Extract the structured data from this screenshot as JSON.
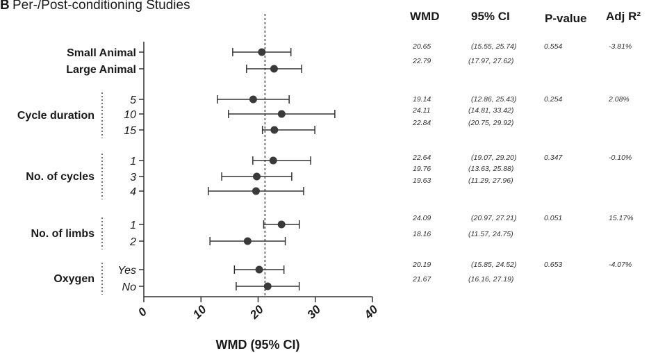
{
  "panel": {
    "letter": "B",
    "title": "Per-/Post-conditioning Studies"
  },
  "table_headers": [
    "WMD",
    "95% CI",
    "P-value",
    "Adj R²"
  ],
  "chart_data": {
    "type": "forest",
    "xlabel": "WMD (95% CI)",
    "xlim": [
      0,
      40
    ],
    "xticks": [
      0,
      10,
      20,
      30,
      40
    ],
    "reference_line": 21.2,
    "groups": [
      {
        "name": "",
        "p_value": "0.554",
        "adj_r2": "-3.81%",
        "items": [
          {
            "label": "Small Animal",
            "wmd": 20.65,
            "lo": 15.55,
            "hi": 25.74,
            "wmd_text": "20.65",
            "ci_text": "(15.55, 25.74)"
          },
          {
            "label": "Large Animal",
            "wmd": 22.79,
            "lo": 17.97,
            "hi": 27.62,
            "wmd_text": "22.79",
            "ci_text": "(17.97, 27.62)"
          }
        ]
      },
      {
        "name": "Cycle duration",
        "p_value": "0.254",
        "adj_r2": "2.08%",
        "items": [
          {
            "label": "5",
            "wmd": 19.14,
            "lo": 12.86,
            "hi": 25.43,
            "wmd_text": "19.14",
            "ci_text": "(12.86, 25.43)"
          },
          {
            "label": "10",
            "wmd": 24.11,
            "lo": 14.81,
            "hi": 33.42,
            "wmd_text": "24.11",
            "ci_text": "(14.81, 33.42)"
          },
          {
            "label": "15",
            "wmd": 22.84,
            "lo": 20.75,
            "hi": 29.92,
            "wmd_text": "22.84",
            "ci_text": "(20.75, 29.92)"
          }
        ]
      },
      {
        "name": "No. of cycles",
        "p_value": "0.347",
        "adj_r2": "-0.10%",
        "items": [
          {
            "label": "1",
            "wmd": 22.64,
            "lo": 19.07,
            "hi": 29.2,
            "wmd_text": "22.64",
            "ci_text": "(19.07, 29.20)"
          },
          {
            "label": "3",
            "wmd": 19.76,
            "lo": 13.63,
            "hi": 25.88,
            "wmd_text": "19.76",
            "ci_text": "(13.63, 25.88)"
          },
          {
            "label": "4",
            "wmd": 19.63,
            "lo": 11.29,
            "hi": 27.96,
            "wmd_text": "19.63",
            "ci_text": "(11.29, 27.96)"
          }
        ]
      },
      {
        "name": "No. of limbs",
        "p_value": "0.051",
        "adj_r2": "15.17%",
        "items": [
          {
            "label": "1",
            "wmd": 24.09,
            "lo": 20.97,
            "hi": 27.21,
            "wmd_text": "24.09",
            "ci_text": "(20.97, 27.21)"
          },
          {
            "label": "2",
            "wmd": 18.16,
            "lo": 11.57,
            "hi": 24.75,
            "wmd_text": "18.16",
            "ci_text": "(11.57, 24.75)"
          }
        ]
      },
      {
        "name": "Oxygen",
        "p_value": "0.653",
        "adj_r2": "-4.07%",
        "items": [
          {
            "label": "Yes",
            "wmd": 20.19,
            "lo": 15.85,
            "hi": 24.52,
            "wmd_text": "20.19",
            "ci_text": "(15.85, 24.52)"
          },
          {
            "label": "No",
            "wmd": 21.67,
            "lo": 16.16,
            "hi": 27.19,
            "wmd_text": "21.67",
            "ci_text": "(16.16, 27.19)"
          }
        ]
      }
    ]
  }
}
